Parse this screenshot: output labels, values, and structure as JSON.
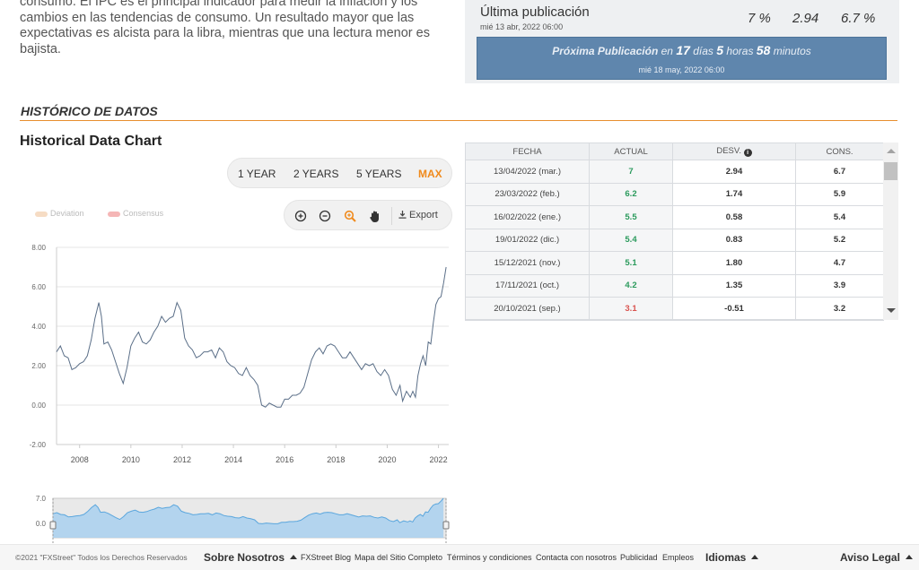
{
  "intro": {
    "text": "consumo. El IPC es el principal indicador para medir la inflación y los cambios en las tendencias de consumo. Un resultado mayor que las expectativas es alcista para la libra, mientras que una lectura menor es bajista."
  },
  "publication": {
    "title": "Última publicación",
    "date": "mié 13 abr, 2022 06:00",
    "actual": "7 %",
    "deviation": "2.94",
    "consensus": "6.7 %",
    "next_prefix": "Próxima Publicación",
    "next_en": "en",
    "next_days": "17",
    "next_days_label": "días",
    "next_hours": "5",
    "next_hours_label": "horas",
    "next_minutes": "58",
    "next_minutes_label": "minutos",
    "next_date": "mié 18 may, 2022 06:00"
  },
  "section": {
    "title": "HISTÓRICO DE DATOS"
  },
  "chart_title": "Historical Data Chart",
  "ranges": [
    {
      "label": "1 YEAR",
      "active": false
    },
    {
      "label": "2 YEARS",
      "active": false
    },
    {
      "label": "5 YEARS",
      "active": false
    },
    {
      "label": "MAX",
      "active": true
    }
  ],
  "toolbar": {
    "export_label": "Export",
    "icons": [
      "zoom-in-icon",
      "zoom-out-icon",
      "zoom-select-icon",
      "pan-hand-icon",
      "download-icon"
    ]
  },
  "legend": {
    "deviation": "Deviation",
    "consensus": "Consensus",
    "deviation_color": "#f6dcc4",
    "consensus_color": "#f5b6b6"
  },
  "chart_data": {
    "type": "line",
    "x_tick_labels": [
      "2008",
      "2010",
      "2012",
      "2014",
      "2016",
      "2018",
      "2020",
      "2022"
    ],
    "y_tick_labels": [
      "8.00",
      "6.00",
      "4.00",
      "2.00",
      "0.00",
      "-2.00"
    ],
    "ylim": [
      -2,
      8
    ],
    "xlim": [
      2007.1,
      2022.4
    ],
    "grid": true,
    "line_color": "#5b6f88",
    "series": [
      {
        "points": [
          [
            2007.1,
            2.7
          ],
          [
            2007.25,
            3.0
          ],
          [
            2007.4,
            2.5
          ],
          [
            2007.55,
            2.4
          ],
          [
            2007.7,
            1.8
          ],
          [
            2007.85,
            1.9
          ],
          [
            2008.0,
            2.1
          ],
          [
            2008.15,
            2.2
          ],
          [
            2008.3,
            2.5
          ],
          [
            2008.45,
            3.3
          ],
          [
            2008.6,
            4.4
          ],
          [
            2008.75,
            5.2
          ],
          [
            2008.85,
            4.5
          ],
          [
            2008.95,
            3.1
          ],
          [
            2009.1,
            3.2
          ],
          [
            2009.25,
            2.8
          ],
          [
            2009.4,
            2.2
          ],
          [
            2009.55,
            1.6
          ],
          [
            2009.7,
            1.1
          ],
          [
            2009.85,
            1.9
          ],
          [
            2010.0,
            3.0
          ],
          [
            2010.15,
            3.4
          ],
          [
            2010.3,
            3.7
          ],
          [
            2010.45,
            3.2
          ],
          [
            2010.6,
            3.1
          ],
          [
            2010.75,
            3.3
          ],
          [
            2010.9,
            3.7
          ],
          [
            2011.05,
            4.0
          ],
          [
            2011.2,
            4.5
          ],
          [
            2011.35,
            4.2
          ],
          [
            2011.5,
            4.4
          ],
          [
            2011.65,
            4.5
          ],
          [
            2011.8,
            5.2
          ],
          [
            2011.95,
            4.8
          ],
          [
            2012.1,
            3.4
          ],
          [
            2012.25,
            3.0
          ],
          [
            2012.4,
            2.8
          ],
          [
            2012.55,
            2.4
          ],
          [
            2012.7,
            2.5
          ],
          [
            2012.85,
            2.7
          ],
          [
            2013.0,
            2.7
          ],
          [
            2013.15,
            2.8
          ],
          [
            2013.3,
            2.4
          ],
          [
            2013.45,
            2.9
          ],
          [
            2013.6,
            2.7
          ],
          [
            2013.75,
            2.2
          ],
          [
            2013.9,
            2.0
          ],
          [
            2014.05,
            1.9
          ],
          [
            2014.2,
            1.6
          ],
          [
            2014.35,
            1.5
          ],
          [
            2014.5,
            1.9
          ],
          [
            2014.65,
            1.5
          ],
          [
            2014.8,
            1.3
          ],
          [
            2014.95,
            1.0
          ],
          [
            2015.1,
            0.0
          ],
          [
            2015.25,
            -0.1
          ],
          [
            2015.4,
            0.1
          ],
          [
            2015.55,
            0.0
          ],
          [
            2015.7,
            -0.1
          ],
          [
            2015.85,
            -0.1
          ],
          [
            2016.0,
            0.3
          ],
          [
            2016.15,
            0.3
          ],
          [
            2016.3,
            0.5
          ],
          [
            2016.45,
            0.5
          ],
          [
            2016.6,
            0.6
          ],
          [
            2016.75,
            0.9
          ],
          [
            2016.9,
            1.6
          ],
          [
            2017.05,
            2.3
          ],
          [
            2017.2,
            2.7
          ],
          [
            2017.35,
            2.9
          ],
          [
            2017.5,
            2.6
          ],
          [
            2017.65,
            3.0
          ],
          [
            2017.8,
            3.1
          ],
          [
            2017.95,
            3.0
          ],
          [
            2018.1,
            2.7
          ],
          [
            2018.25,
            2.4
          ],
          [
            2018.4,
            2.4
          ],
          [
            2018.55,
            2.7
          ],
          [
            2018.7,
            2.4
          ],
          [
            2018.85,
            2.1
          ],
          [
            2019.0,
            1.8
          ],
          [
            2019.15,
            2.1
          ],
          [
            2019.3,
            2.0
          ],
          [
            2019.45,
            2.1
          ],
          [
            2019.6,
            1.7
          ],
          [
            2019.75,
            1.5
          ],
          [
            2019.9,
            1.8
          ],
          [
            2020.05,
            1.5
          ],
          [
            2020.2,
            0.8
          ],
          [
            2020.35,
            0.5
          ],
          [
            2020.5,
            1.0
          ],
          [
            2020.6,
            0.2
          ],
          [
            2020.75,
            0.7
          ],
          [
            2020.9,
            0.4
          ],
          [
            2021.0,
            0.7
          ],
          [
            2021.1,
            0.4
          ],
          [
            2021.2,
            1.5
          ],
          [
            2021.3,
            2.1
          ],
          [
            2021.4,
            2.5
          ],
          [
            2021.5,
            2.0
          ],
          [
            2021.6,
            3.2
          ],
          [
            2021.7,
            3.1
          ],
          [
            2021.8,
            4.2
          ],
          [
            2021.9,
            5.1
          ],
          [
            2022.0,
            5.4
          ],
          [
            2022.1,
            5.5
          ],
          [
            2022.2,
            6.2
          ],
          [
            2022.3,
            7.0
          ]
        ]
      }
    ]
  },
  "navigator": {
    "y_labels": [
      "7.0",
      "0.0"
    ],
    "fill_color": "#a9d0ee",
    "line_color": "#5aa6dd"
  },
  "table": {
    "headers": {
      "fecha": "FECHA",
      "actual": "ACTUAL",
      "desv": "DESV.",
      "cons": "CONS."
    },
    "rows": [
      {
        "fecha": "13/04/2022 (mar.)",
        "actual": "7",
        "desv": "2.94",
        "cons": "6.7",
        "color": "#2a9a5c"
      },
      {
        "fecha": "23/03/2022 (feb.)",
        "actual": "6.2",
        "desv": "1.74",
        "cons": "5.9",
        "color": "#2a9a5c"
      },
      {
        "fecha": "16/02/2022 (ene.)",
        "actual": "5.5",
        "desv": "0.58",
        "cons": "5.4",
        "color": "#2a9a5c"
      },
      {
        "fecha": "19/01/2022 (dic.)",
        "actual": "5.4",
        "desv": "0.83",
        "cons": "5.2",
        "color": "#2a9a5c"
      },
      {
        "fecha": "15/12/2021 (nov.)",
        "actual": "5.1",
        "desv": "1.80",
        "cons": "4.7",
        "color": "#2a9a5c"
      },
      {
        "fecha": "17/11/2021 (oct.)",
        "actual": "4.2",
        "desv": "1.35",
        "cons": "3.9",
        "color": "#2a9a5c"
      },
      {
        "fecha": "20/10/2021 (sep.)",
        "actual": "3.1",
        "desv": "-0.51",
        "cons": "3.2",
        "color": "#d9534f"
      }
    ]
  },
  "footer": {
    "copyright": "©2021 \"FXStreet\" Todos los Derechos Reservados",
    "about": "Sobre Nosotros",
    "links": [
      "FXStreet Blog",
      "Mapa del Sitio Completo",
      "Términos y condiciones",
      "Contacta con nosotros",
      "Publicidad",
      "Empleos"
    ],
    "languages": "Idiomas",
    "legal": "Aviso Legal"
  }
}
